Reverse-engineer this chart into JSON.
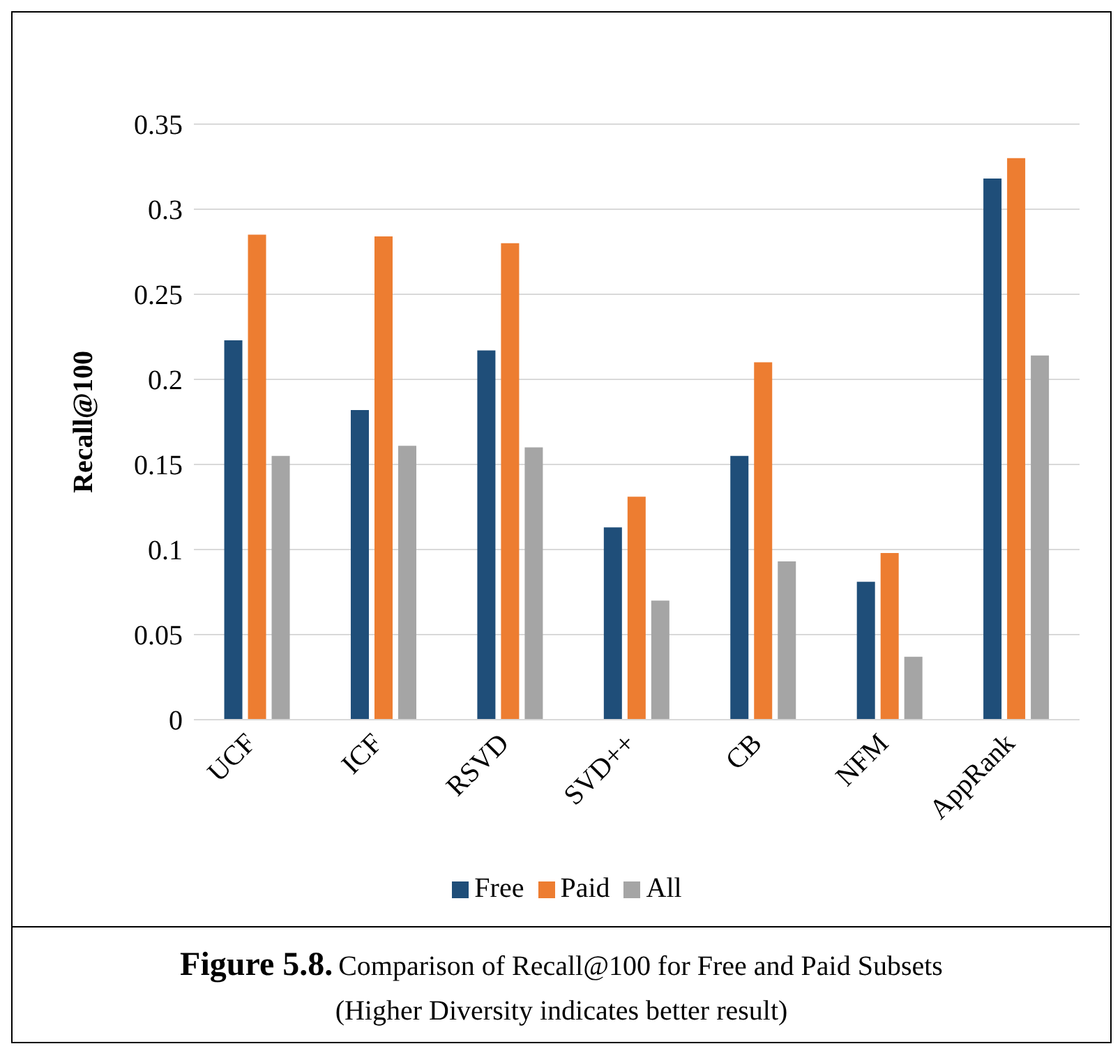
{
  "chart_data": {
    "type": "bar",
    "ylabel": "Recall@100",
    "categories": [
      "UCF",
      "ICF",
      "RSVD",
      "SVD++",
      "CB",
      "NFM",
      "AppRank"
    ],
    "series": [
      {
        "name": "Free",
        "color": "#1f4e79",
        "values": [
          0.223,
          0.182,
          0.217,
          0.113,
          0.155,
          0.081,
          0.318
        ]
      },
      {
        "name": "Paid",
        "color": "#ed7d31",
        "values": [
          0.285,
          0.284,
          0.28,
          0.131,
          0.21,
          0.098,
          0.33
        ]
      },
      {
        "name": "All",
        "color": "#a5a5a5",
        "values": [
          0.155,
          0.161,
          0.16,
          0.07,
          0.093,
          0.037,
          0.214
        ]
      }
    ],
    "ylim": [
      0,
      0.35
    ],
    "yticks": [
      0,
      0.05,
      0.1,
      0.15,
      0.2,
      0.25,
      0.3,
      0.35
    ],
    "grid": "y",
    "legend": "bottom",
    "annotations": [
      "Figure 5.8.",
      "Comparison of Recall@100 for Free and Paid Subsets",
      "(Higher Diversity indicates better result)"
    ]
  }
}
